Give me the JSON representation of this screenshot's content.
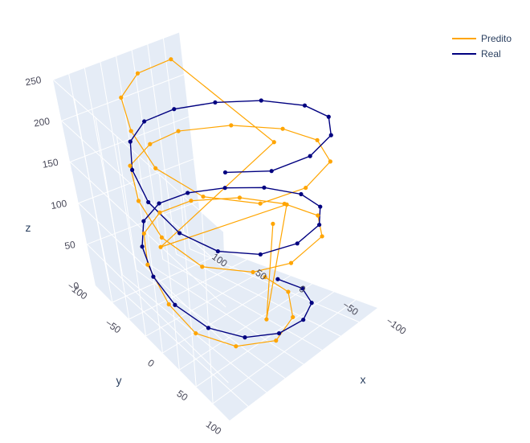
{
  "chart_data": {
    "type": "line3d",
    "xlabel": "x",
    "ylabel": "y",
    "zlabel": "z",
    "xlim": [
      -100,
      100
    ],
    "ylim": [
      -100,
      100
    ],
    "zlim": [
      0,
      250
    ],
    "x_ticks": [
      "−100",
      "−50",
      "0",
      "50",
      "100"
    ],
    "y_ticks": [
      "−100",
      "−50",
      "0",
      "50",
      "100"
    ],
    "z_ticks": [
      "0",
      "50",
      "100",
      "150",
      "200",
      "250"
    ],
    "legend_position": "top-right",
    "series": [
      {
        "name": "Predito",
        "color": "#FFA500",
        "points": [
          [
            73.5,
            -10.0,
            6.1
          ],
          [
            56.6,
            29.8,
            14.6
          ],
          [
            22.2,
            63.8,
            21.2
          ],
          [
            -17.7,
            79.0,
            27.4
          ],
          [
            -56.8,
            64.4,
            35.9
          ],
          [
            -80.1,
            33.0,
            41.9
          ],
          [
            -80.7,
            -2.8,
            49.3
          ],
          [
            -63.8,
            -45.0,
            57.4
          ],
          [
            -32.6,
            -73.3,
            63.6
          ],
          [
            7.0,
            -81.5,
            71.2
          ],
          [
            45.1,
            -71.1,
            78.8
          ],
          [
            74.5,
            -38.9,
            86.0
          ],
          [
            81.0,
            2.2,
            92.2
          ],
          [
            71.3,
            42.8,
            100.0
          ],
          [
            41.1,
            71.3,
            107.7
          ],
          [
            -6.2,
            80.0,
            114.2
          ],
          [
            -40.1,
            68.7,
            120.2
          ],
          [
            -73.7,
            40.7,
            128.6
          ],
          [
            -82.3,
            -1.0,
            135.4
          ],
          [
            -69.7,
            -40.0,
            142.2
          ],
          [
            -41.3,
            -71.1,
            150.1
          ],
          [
            1.8,
            -78.5,
            156.6
          ],
          [
            36.6,
            -71.6,
            164.1
          ],
          [
            69.4,
            -42.1,
            171.4
          ],
          [
            78.5,
            -1.3,
            178.6
          ],
          [
            68.5,
            36.8,
            185.8
          ],
          [
            43.2,
            68.8,
            192.1
          ],
          [
            1.2,
            82.0,
            200.3
          ],
          [
            -36.9,
            71.9,
            205.1
          ],
          [
            -68.5,
            40.8,
            213.5
          ],
          [
            -80.3,
            -1.7,
            220.4
          ],
          [
            -67.7,
            -39.7,
            227.5
          ],
          [
            -42.2,
            -69.3,
            234.3
          ],
          [
            -0.3,
            -80.3,
            241.0
          ],
          [
            37.2,
            -72.3,
            248.9
          ],
          [
            54.5,
            8.0,
            180.0
          ],
          [
            -67.0,
            -20.0,
            100.0
          ],
          [
            48.0,
            28.0,
            120.0
          ],
          [
            -5.0,
            55.0,
            30.0
          ],
          [
            44.0,
            18.0,
            95.0
          ]
        ]
      },
      {
        "name": "Real",
        "color": "#000080",
        "points": [
          [
            80.0,
            0.0,
            5.0
          ],
          [
            72.5,
            33.8,
            12.1
          ],
          [
            51.4,
            61.3,
            19.3
          ],
          [
            20.7,
            77.3,
            26.4
          ],
          [
            -13.9,
            78.8,
            33.6
          ],
          [
            -45.9,
            65.5,
            40.7
          ],
          [
            -69.3,
            40.0,
            47.9
          ],
          [
            -79.9,
            5.5,
            55.0
          ],
          [
            -75.8,
            -26.6,
            62.1
          ],
          [
            -57.7,
            -55.4,
            69.3
          ],
          [
            -28.8,
            -74.7,
            76.4
          ],
          [
            5.6,
            -79.8,
            83.6
          ],
          [
            39.1,
            -69.8,
            90.7
          ],
          [
            64.7,
            -47.1,
            97.9
          ],
          [
            78.2,
            -16.6,
            105.0
          ],
          [
            77.4,
            20.3,
            112.1
          ],
          [
            61.7,
            50.9,
            119.3
          ],
          [
            34.3,
            72.3,
            126.4
          ],
          [
            -0.5,
            80.0,
            133.6
          ],
          [
            -35.0,
            71.9,
            140.7
          ],
          [
            -62.7,
            49.7,
            147.9
          ],
          [
            -77.8,
            18.6,
            155.0
          ],
          [
            -77.8,
            -18.7,
            162.1
          ],
          [
            -62.6,
            -49.8,
            169.3
          ],
          [
            -34.9,
            -72.0,
            176.4
          ],
          [
            -0.4,
            -80.0,
            183.6
          ],
          [
            34.4,
            -72.2,
            190.7
          ],
          [
            61.7,
            -50.9,
            197.9
          ],
          [
            77.4,
            -20.2,
            205.0
          ],
          [
            78.2,
            16.7,
            212.1
          ],
          [
            64.6,
            47.2,
            219.3
          ],
          [
            39.0,
            69.8,
            226.4
          ],
          [
            5.5,
            79.8,
            233.6
          ],
          [
            -28.9,
            74.6,
            240.7
          ],
          [
            -57.8,
            55.3,
            247.9
          ]
        ]
      }
    ]
  }
}
